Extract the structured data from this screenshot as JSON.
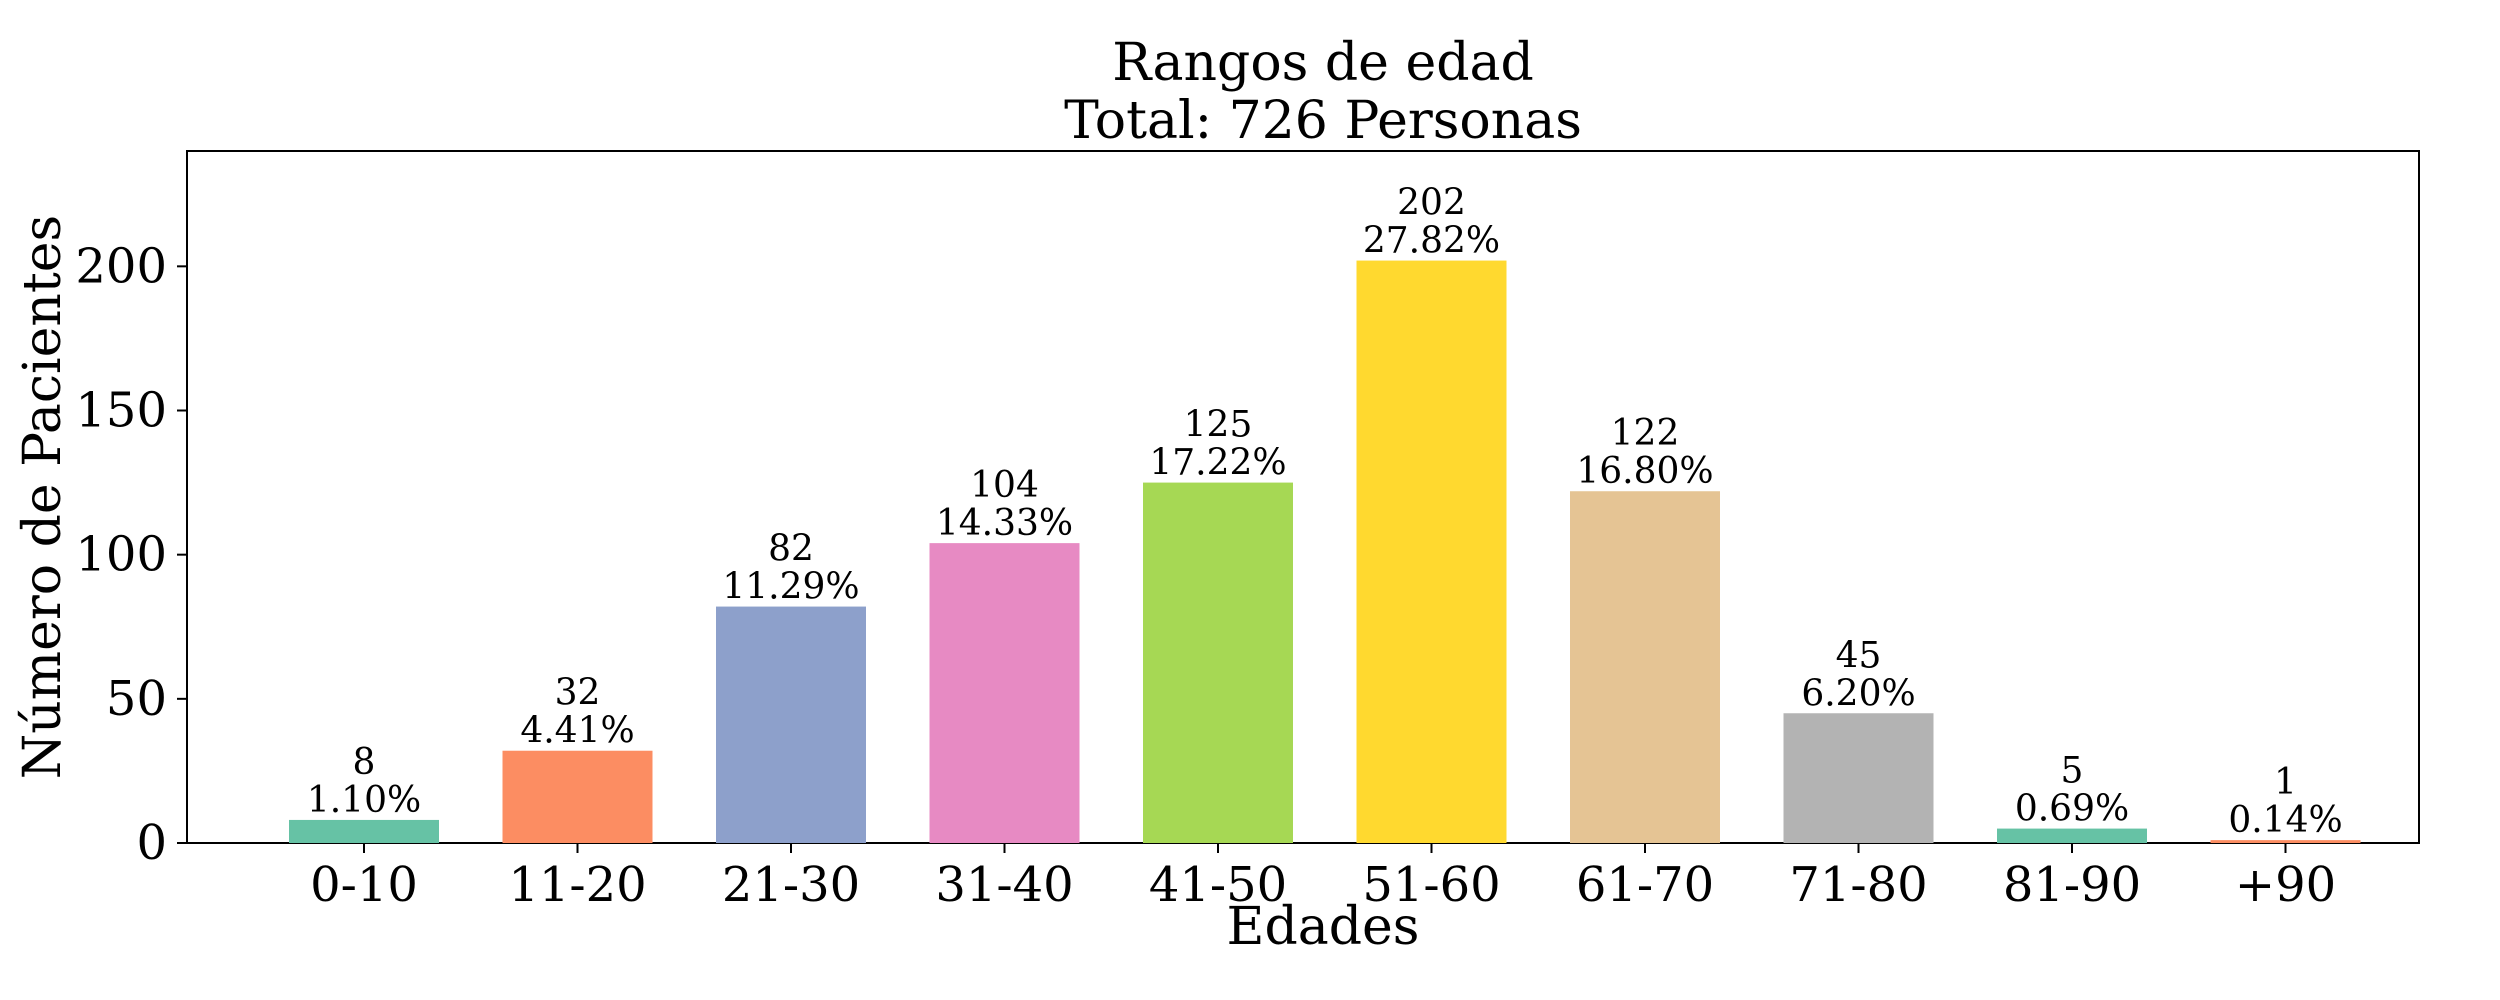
{
  "chart_data": {
    "type": "bar",
    "title_lines": [
      "Rangos de edad",
      "Total: 726 Personas"
    ],
    "xlabel": "Edades",
    "ylabel": "Número de Pacientes",
    "categories": [
      "0-10",
      "11-20",
      "21-30",
      "31-40",
      "41-50",
      "51-60",
      "61-70",
      "71-80",
      "81-90",
      "+90"
    ],
    "values": [
      8,
      32,
      82,
      104,
      125,
      202,
      122,
      45,
      5,
      1
    ],
    "percent_labels": [
      "1.10%",
      "4.41%",
      "11.29%",
      "14.33%",
      "17.22%",
      "27.82%",
      "16.80%",
      "6.20%",
      "0.69%",
      "0.14%"
    ],
    "colors": [
      "#66c2a5",
      "#fc8d62",
      "#8da0cb",
      "#e78ac3",
      "#a6d854",
      "#ffd92f",
      "#e5c494",
      "#b3b3b3",
      "#66c2a5",
      "#fc8d62"
    ],
    "ylim": [
      0,
      240
    ],
    "yticks": [
      0,
      50,
      100,
      150,
      200
    ],
    "grid": false,
    "legend": false
  }
}
